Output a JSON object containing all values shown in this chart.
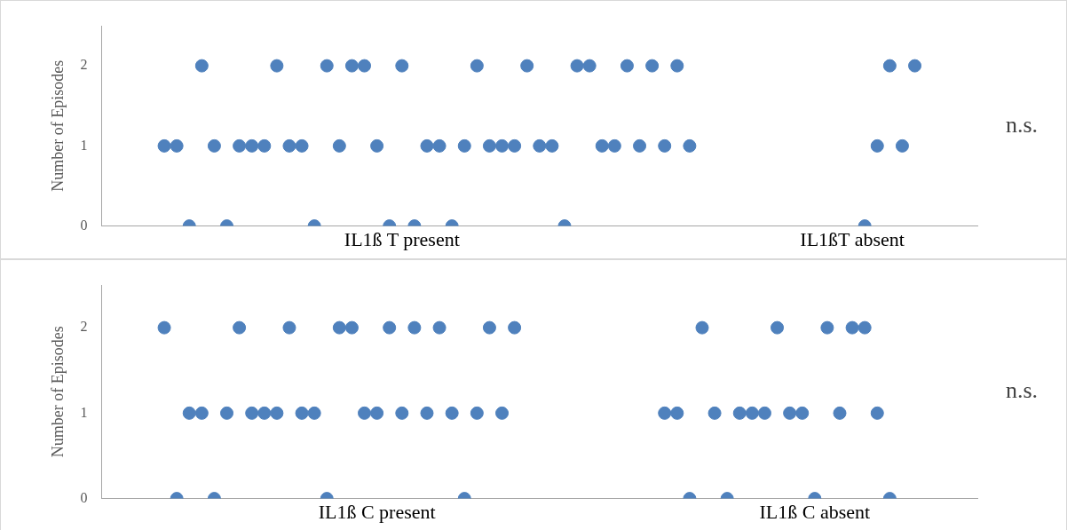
{
  "chart_data": [
    {
      "type": "scatter",
      "ylabel": "Number of Episodes",
      "ylim": [
        0,
        2.5
      ],
      "yticks": [
        0,
        1,
        2
      ],
      "grid": false,
      "legend": false,
      "marker": "circle",
      "annotations": [
        "n.s."
      ],
      "categories": [
        null,
        null,
        null,
        null,
        null,
        null,
        null,
        null,
        null,
        null,
        null,
        null,
        null,
        null,
        null,
        null,
        null,
        null,
        null,
        null,
        null,
        null,
        null,
        null,
        "IL1ß T present",
        null,
        null,
        null,
        null,
        null,
        null,
        null,
        null,
        null,
        null,
        null,
        null,
        null,
        null,
        null,
        null,
        null,
        null,
        null,
        null,
        null,
        null,
        null,
        null,
        null,
        null,
        null,
        null,
        null,
        null,
        null,
        null,
        null,
        null,
        null,
        "IL1ßT absent",
        null,
        null,
        null,
        null,
        null,
        null,
        null,
        null,
        null,
        null
      ],
      "series": [
        {
          "color": "#4f81bd",
          "values": [
            null,
            null,
            null,
            null,
            null,
            1,
            1,
            0,
            2,
            1,
            0,
            1,
            1,
            1,
            2,
            1,
            1,
            0,
            2,
            1,
            2,
            2,
            1,
            0,
            2,
            0,
            1,
            1,
            0,
            1,
            2,
            1,
            1,
            1,
            2,
            1,
            1,
            0,
            2,
            2,
            1,
            1,
            2,
            1,
            2,
            1,
            2,
            1,
            null,
            null,
            null,
            null,
            null,
            null,
            null,
            null,
            null,
            null,
            null,
            null,
            null,
            0,
            1,
            2,
            1,
            2,
            null,
            null,
            null,
            null,
            null
          ]
        }
      ]
    },
    {
      "type": "scatter",
      "ylabel": "Number of Episodes",
      "ylim": [
        0,
        2.5
      ],
      "yticks": [
        0,
        1,
        2
      ],
      "grid": false,
      "legend": false,
      "marker": "circle",
      "annotations": [
        "n.s."
      ],
      "categories": [
        null,
        null,
        null,
        null,
        null,
        null,
        null,
        null,
        null,
        null,
        null,
        null,
        null,
        null,
        null,
        null,
        null,
        null,
        null,
        null,
        null,
        null,
        "IL1ß C present",
        null,
        null,
        null,
        null,
        null,
        null,
        null,
        null,
        null,
        null,
        null,
        null,
        null,
        null,
        null,
        null,
        null,
        null,
        null,
        null,
        null,
        null,
        null,
        null,
        null,
        null,
        null,
        null,
        null,
        null,
        null,
        null,
        null,
        null,
        "IL1ß C absent",
        null,
        null,
        null,
        null,
        null,
        null,
        null,
        null,
        null,
        null,
        null,
        null,
        null
      ],
      "series": [
        {
          "color": "#4f81bd",
          "values": [
            null,
            null,
            null,
            null,
            null,
            2,
            0,
            1,
            1,
            0,
            1,
            2,
            1,
            1,
            1,
            2,
            1,
            1,
            0,
            2,
            2,
            1,
            1,
            2,
            1,
            2,
            1,
            2,
            1,
            0,
            1,
            2,
            1,
            2,
            null,
            null,
            null,
            null,
            null,
            null,
            null,
            null,
            null,
            null,
            null,
            1,
            1,
            0,
            2,
            1,
            0,
            1,
            1,
            1,
            2,
            1,
            1,
            0,
            2,
            1,
            2,
            2,
            1,
            0,
            null,
            null,
            null,
            null,
            null,
            null,
            null
          ]
        }
      ]
    }
  ]
}
